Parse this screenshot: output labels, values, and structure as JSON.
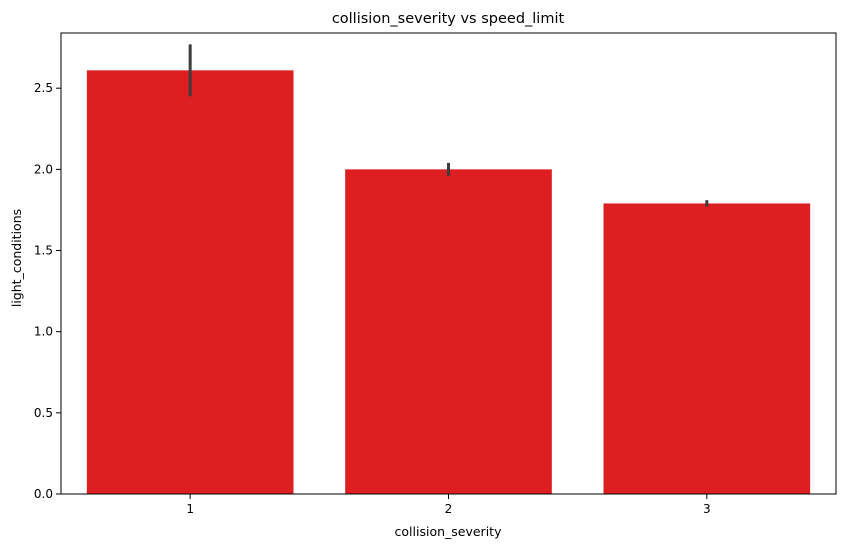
{
  "chart_data": {
    "type": "bar",
    "title": "collision_severity vs speed_limit",
    "xlabel": "collision_severity",
    "ylabel": "light_conditions",
    "categories": [
      "1",
      "2",
      "3"
    ],
    "values": [
      2.61,
      2.0,
      1.79
    ],
    "error_bars": [
      {
        "low": 2.45,
        "high": 2.77
      },
      {
        "low": 1.96,
        "high": 2.04
      },
      {
        "low": 1.77,
        "high": 1.81
      }
    ],
    "ylim": [
      0,
      2.84
    ],
    "yticks": [
      0.0,
      0.5,
      1.0,
      1.5,
      2.0,
      2.5
    ],
    "ytick_labels": [
      "0.0",
      "0.5",
      "1.0",
      "1.5",
      "2.0",
      "2.5"
    ],
    "grid": false,
    "bar_color": "#de1f21",
    "error_color": "#3d3d3d"
  }
}
